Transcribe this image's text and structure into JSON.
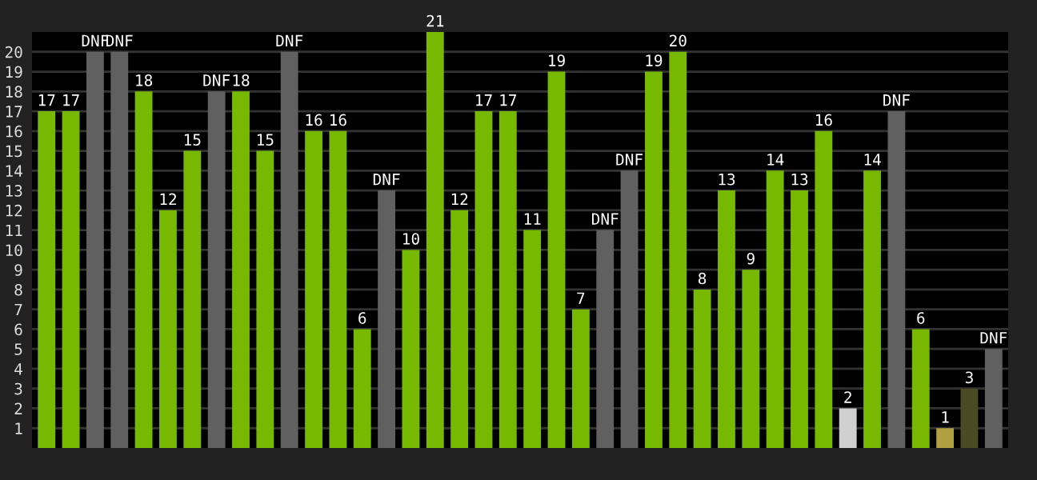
{
  "chart_data": {
    "type": "bar",
    "categories": [
      null,
      null,
      null,
      null,
      null,
      null,
      null,
      null,
      null,
      null,
      null,
      null,
      null,
      null,
      null,
      null,
      null,
      null,
      null,
      null,
      null,
      null,
      null,
      null,
      null,
      null,
      null,
      null,
      null,
      null,
      null,
      null,
      null,
      null,
      null,
      null,
      null,
      null,
      null,
      null
    ],
    "values": [
      17,
      17,
      20,
      20,
      18,
      12,
      15,
      18,
      18,
      15,
      20,
      16,
      16,
      6,
      13,
      10,
      21,
      12,
      17,
      17,
      11,
      19,
      7,
      11,
      14,
      19,
      20,
      8,
      13,
      9,
      14,
      13,
      16,
      2,
      14,
      17,
      6,
      1,
      3,
      5
    ],
    "value_labels": [
      "17",
      "17",
      "DNF",
      "DNF",
      "18",
      "12",
      "15",
      "DNF",
      "18",
      "15",
      "DNF",
      "16",
      "16",
      "6",
      "DNF",
      "10",
      "21",
      "12",
      "17",
      "17",
      "11",
      "19",
      "7",
      "DNF",
      "DNF",
      "19",
      "20",
      "8",
      "13",
      "9",
      "14",
      "13",
      "16",
      "2",
      "14",
      "DNF",
      "6",
      "1",
      "3",
      "DNF"
    ],
    "colors": [
      "#76b900",
      "#76b900",
      "#606060",
      "#606060",
      "#76b900",
      "#76b900",
      "#76b900",
      "#606060",
      "#76b900",
      "#76b900",
      "#606060",
      "#76b900",
      "#76b900",
      "#76b900",
      "#606060",
      "#76b900",
      "#76b900",
      "#76b900",
      "#76b900",
      "#76b900",
      "#76b900",
      "#76b900",
      "#76b900",
      "#606060",
      "#606060",
      "#76b900",
      "#76b900",
      "#76b900",
      "#76b900",
      "#76b900",
      "#76b900",
      "#76b900",
      "#76b900",
      "#d0d0d0",
      "#76b900",
      "#606060",
      "#76b900",
      "#b0a040",
      "#4a4a24",
      "#606060"
    ],
    "ylim": [
      0,
      21
    ],
    "yticks": [
      1,
      2,
      3,
      4,
      5,
      6,
      7,
      8,
      9,
      10,
      11,
      12,
      13,
      14,
      15,
      16,
      17,
      18,
      19,
      20
    ],
    "grid": "y",
    "tick_labels": "y"
  }
}
